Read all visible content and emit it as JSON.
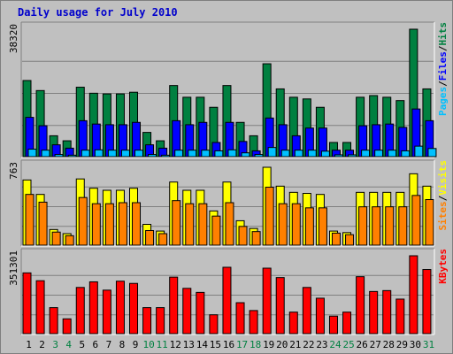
{
  "title": "Daily usage for July 2010",
  "days": [
    "1",
    "2",
    "3",
    "4",
    "5",
    "6",
    "7",
    "8",
    "9",
    "10",
    "11",
    "12",
    "13",
    "14",
    "15",
    "16",
    "17",
    "18",
    "19",
    "20",
    "21",
    "22",
    "23",
    "24",
    "25",
    "26",
    "27",
    "28",
    "29",
    "30",
    "31"
  ],
  "weekend_days": [
    3,
    4,
    10,
    11,
    17,
    18,
    24,
    25,
    31
  ],
  "colors": {
    "background": "#c0c0c0",
    "hits": "#008040",
    "files": "#0000ff",
    "pages": "#00c0ff",
    "visits": "#ffff00",
    "sites": "#ff8000",
    "kbytes": "#ff0000",
    "weekday_label": "#000000",
    "weekend_label": "#008040",
    "title": "#0000cc"
  },
  "chart_data": [
    {
      "type": "bar",
      "panel": "hits",
      "max_label": "38320",
      "legend": [
        "Pages",
        "Files",
        "Hits"
      ],
      "ylim": [
        0,
        38320
      ],
      "x": [
        1,
        2,
        3,
        4,
        5,
        6,
        7,
        8,
        9,
        10,
        11,
        12,
        13,
        14,
        15,
        16,
        17,
        18,
        19,
        20,
        21,
        22,
        23,
        24,
        25,
        26,
        27,
        28,
        29,
        30,
        31
      ],
      "series": [
        {
          "name": "Hits",
          "values": [
            23000,
            20000,
            6500,
            5000,
            21000,
            19200,
            19000,
            19000,
            19500,
            7500,
            5000,
            21500,
            18000,
            18000,
            15000,
            21500,
            10500,
            6500,
            28000,
            20500,
            18000,
            17500,
            15000,
            4500,
            4500,
            18000,
            18500,
            18000,
            17000,
            38320,
            20500
          ]
        },
        {
          "name": "Files",
          "values": [
            12000,
            9500,
            3800,
            2800,
            11000,
            10000,
            9800,
            9800,
            10500,
            3800,
            2800,
            11000,
            9800,
            10500,
            4500,
            10500,
            4800,
            2000,
            11800,
            9800,
            6500,
            8800,
            8800,
            2200,
            2200,
            9500,
            9800,
            10000,
            9000,
            14500,
            11000
          ]
        },
        {
          "name": "Pages",
          "values": [
            2500,
            2200,
            900,
            700,
            2200,
            2300,
            2200,
            2200,
            2200,
            900,
            700,
            2200,
            2200,
            2200,
            2000,
            2300,
            1400,
            900,
            3000,
            2200,
            2200,
            2200,
            1900,
            800,
            800,
            2200,
            2200,
            2200,
            2000,
            3400,
            2700
          ]
        }
      ]
    },
    {
      "type": "bar",
      "panel": "visits",
      "max_label": "763",
      "legend": [
        "Sites",
        "Visits"
      ],
      "ylim": [
        0,
        763
      ],
      "x": [
        1,
        2,
        3,
        4,
        5,
        6,
        7,
        8,
        9,
        10,
        11,
        12,
        13,
        14,
        15,
        16,
        17,
        18,
        19,
        20,
        21,
        22,
        23,
        24,
        25,
        26,
        27,
        28,
        29,
        30,
        31
      ],
      "series": [
        {
          "name": "Visits",
          "values": [
            640,
            500,
            160,
            120,
            650,
            560,
            540,
            540,
            560,
            210,
            145,
            620,
            540,
            540,
            340,
            620,
            245,
            170,
            763,
            580,
            520,
            510,
            500,
            145,
            130,
            520,
            520,
            520,
            520,
            700,
            580
          ]
        },
        {
          "name": "Sites",
          "values": [
            500,
            425,
            135,
            100,
            470,
            410,
            410,
            420,
            420,
            150,
            120,
            440,
            410,
            410,
            290,
            420,
            190,
            140,
            570,
            410,
            410,
            370,
            370,
            125,
            110,
            380,
            380,
            380,
            380,
            490,
            450
          ]
        }
      ]
    },
    {
      "type": "bar",
      "panel": "kbytes",
      "max_label": "351301",
      "legend": [
        "KBytes"
      ],
      "ylim": [
        0,
        351301
      ],
      "x": [
        1,
        2,
        3,
        4,
        5,
        6,
        7,
        8,
        9,
        10,
        11,
        12,
        13,
        14,
        15,
        16,
        17,
        18,
        19,
        20,
        21,
        22,
        23,
        24,
        25,
        26,
        27,
        28,
        29,
        30,
        31
      ],
      "series": [
        {
          "name": "KBytes",
          "values": [
            275000,
            240000,
            120000,
            70000,
            210000,
            235000,
            198000,
            238000,
            228000,
            120000,
            120000,
            256000,
            206000,
            188000,
            88000,
            300000,
            142000,
            107000,
            296000,
            254000,
            100000,
            210000,
            162000,
            82000,
            100000,
            258000,
            192000,
            196000,
            158000,
            351301,
            290000
          ]
        }
      ]
    }
  ]
}
